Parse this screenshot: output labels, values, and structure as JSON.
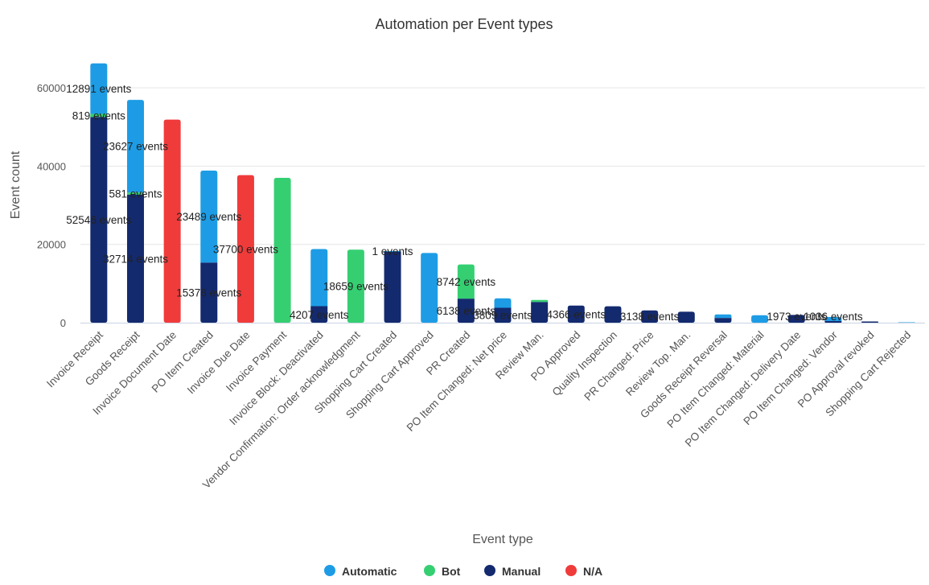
{
  "chart_data": {
    "type": "bar",
    "stacked": true,
    "title": "Automation per Event types",
    "xlabel": "Event type",
    "ylabel": "Event count",
    "ylim": [
      0,
      66000
    ],
    "yticks": [
      0,
      20000,
      40000,
      60000
    ],
    "grid": true,
    "legend_position": "bottom",
    "categories": [
      "Invoice Receipt",
      "Goods Receipt",
      "Invoice Document Date",
      "PO Item Created",
      "Invoice Due Date",
      "Invoice Payment",
      "Invoice Block: Deactivated",
      "Vendor Confirmation: Order acknowledgment",
      "Shopping Cart Created",
      "Shopping Cart Approved",
      "PR Created",
      "PO Item Changed: Net price",
      "Review Man.",
      "PO Approved",
      "Quality Inspection",
      "PR Changed: Price",
      "Review Top. Man.",
      "Goods Receipt Reversal",
      "PO Item Changed: Material",
      "PO Item Changed: Delivery Date",
      "PO Item Changed: Vendor",
      "PO Approval revoked",
      "Shopping Cart Rejected"
    ],
    "series": [
      {
        "name": "Manual",
        "color": "#142a6e",
        "values": [
          52546,
          32714,
          0,
          15378,
          0,
          0,
          4207,
          0,
          18300,
          0,
          6138,
          3809,
          5300,
          4366,
          4200,
          3138,
          2800,
          1200,
          0,
          1973,
          400,
          300,
          0
        ]
      },
      {
        "name": "Bot",
        "color": "#35cf72",
        "values": [
          819,
          581,
          0,
          0,
          0,
          37000,
          0,
          18659,
          0,
          0,
          8742,
          0,
          500,
          0,
          0,
          0,
          0,
          0,
          0,
          0,
          0,
          0,
          0
        ]
      },
      {
        "name": "Automatic",
        "color": "#1d9ce5",
        "values": [
          12891,
          23627,
          0,
          23489,
          0,
          0,
          14600,
          0,
          1,
          17800,
          0,
          2400,
          0,
          0,
          0,
          0,
          0,
          900,
          1900,
          0,
          1036,
          0,
          100
        ]
      },
      {
        "name": "N/A",
        "color": "#f03b3b",
        "values": [
          0,
          0,
          51900,
          0,
          37700,
          0,
          0,
          0,
          0,
          0,
          0,
          0,
          0,
          0,
          0,
          0,
          0,
          0,
          0,
          0,
          0,
          0,
          0
        ]
      }
    ],
    "data_labels": [
      {
        "category": 0,
        "series": "Automatic",
        "text": "12891 events"
      },
      {
        "category": 0,
        "series": "Bot",
        "text": "819 events"
      },
      {
        "category": 0,
        "series": "Manual",
        "text": "52546 events"
      },
      {
        "category": 1,
        "series": "Automatic",
        "text": "23627 events"
      },
      {
        "category": 1,
        "series": "Bot",
        "text": "581 events"
      },
      {
        "category": 1,
        "series": "Manual",
        "text": "32714 events"
      },
      {
        "category": 3,
        "series": "Automatic",
        "text": "23489 events"
      },
      {
        "category": 3,
        "series": "Manual",
        "text": "15378 events"
      },
      {
        "category": 4,
        "series": "N/A",
        "text": "37700 events"
      },
      {
        "category": 6,
        "series": "Manual",
        "text": "4207 events"
      },
      {
        "category": 7,
        "series": "Bot",
        "text": "18659 events"
      },
      {
        "category": 8,
        "series": "Automatic",
        "text": "1 events"
      },
      {
        "category": 10,
        "series": "Bot",
        "text": "8742 events"
      },
      {
        "category": 10,
        "series": "Manual",
        "text": "6138 events"
      },
      {
        "category": 11,
        "series": "Manual",
        "text": "3809 events"
      },
      {
        "category": 13,
        "series": "Manual",
        "text": "4366 events"
      },
      {
        "category": 15,
        "series": "Manual",
        "text": "3138 events"
      },
      {
        "category": 19,
        "series": "Manual",
        "text": "1973 events"
      },
      {
        "category": 20,
        "series": "Automatic",
        "text": "1036 events"
      }
    ]
  },
  "legend": {
    "items": [
      {
        "label": "Automatic",
        "color": "#1d9ce5"
      },
      {
        "label": "Bot",
        "color": "#35cf72"
      },
      {
        "label": "Manual",
        "color": "#142a6e"
      },
      {
        "label": "N/A",
        "color": "#f03b3b"
      }
    ]
  }
}
